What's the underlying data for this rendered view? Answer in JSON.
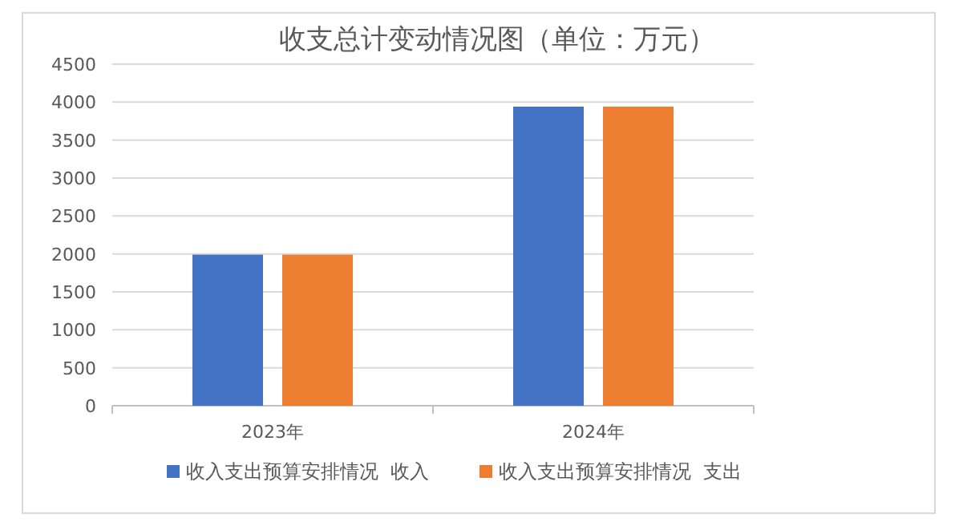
{
  "chart_data": {
    "type": "bar",
    "title": "收支总计变动情况图（单位：万元）",
    "categories": [
      "2023年",
      "2024年"
    ],
    "series": [
      {
        "name": "收入支出预算安排情况  收入",
        "color": "#4472c4",
        "values": [
          1990,
          3940
        ]
      },
      {
        "name": "收入支出预算安排情况  支出",
        "color": "#ed7d31",
        "values": [
          1990,
          3940
        ]
      }
    ],
    "ylim": [
      0,
      4500
    ],
    "yticks": [
      0,
      500,
      1000,
      1500,
      2000,
      2500,
      3000,
      3500,
      4000,
      4500
    ],
    "grid": "y",
    "legend": "bottom"
  }
}
